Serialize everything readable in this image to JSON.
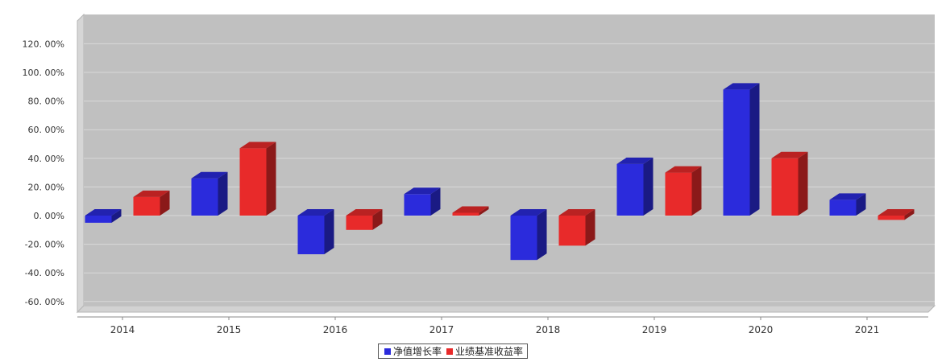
{
  "chart_data": {
    "type": "bar",
    "categories": [
      "2014",
      "2015",
      "2016",
      "2017",
      "2018",
      "2019",
      "2020",
      "2021"
    ],
    "series": [
      {
        "name": "净值增长率",
        "color": "#2b2bdc",
        "values": [
          -5,
          26,
          -27,
          15,
          -31,
          36,
          88,
          11
        ]
      },
      {
        "name": "业绩基准收益率",
        "color": "#e82a2a",
        "values": [
          13,
          47,
          -10,
          2,
          -21,
          30,
          40,
          -3
        ]
      }
    ],
    "y_ticks": [
      "120. 00%",
      "100. 00%",
      "80. 00%",
      "60. 00%",
      "40. 00%",
      "20. 00%",
      "0. 00%",
      "-20. 00%",
      "-40. 00%",
      "-60. 00%"
    ],
    "ylim": [
      -60,
      120
    ],
    "plot_background": "#c0c0c0",
    "grid": true,
    "legend_position": "bottom-center"
  }
}
